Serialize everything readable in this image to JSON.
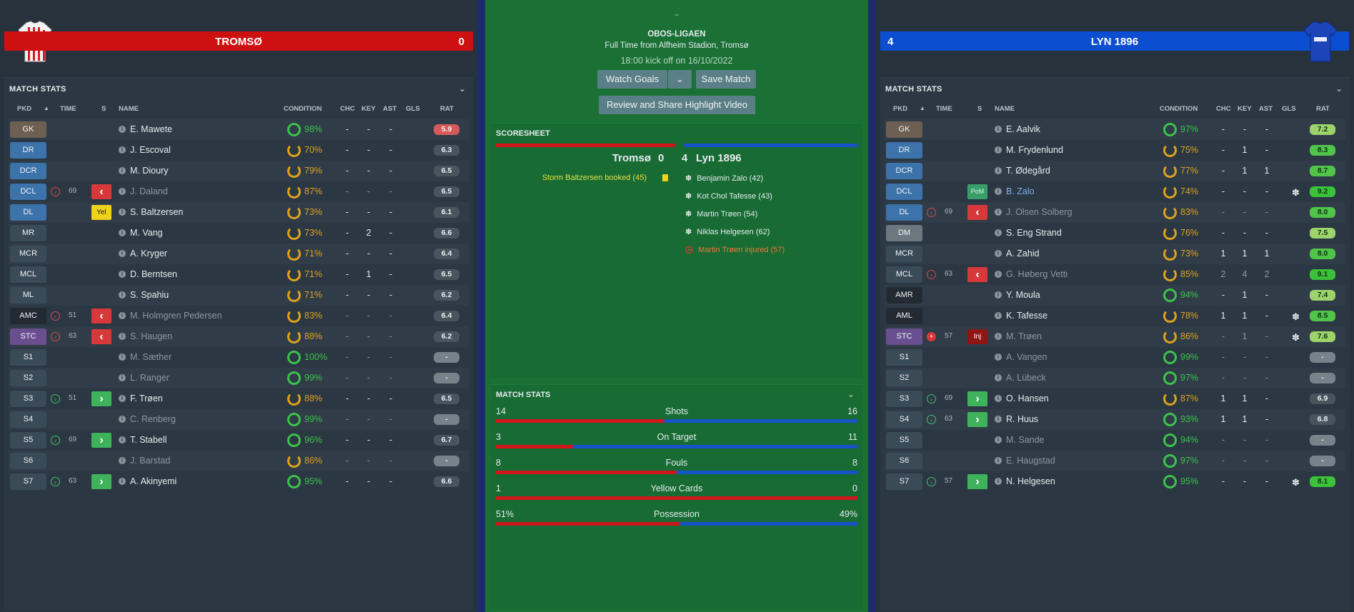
{
  "home": {
    "name": "TROMSØ",
    "score": "0",
    "color": "#cd1111",
    "panel_title": "MATCH STATS",
    "columns": [
      "PKD",
      "TIME",
      "S",
      "NAME",
      "CONDITION",
      "CHC",
      "KEY",
      "AST",
      "GLS",
      "RAT"
    ],
    "players": [
      {
        "pos": "GK",
        "posColor": "#6d6052",
        "time": "",
        "sub": "",
        "evt": "",
        "name": "E. Mawete",
        "cond": "98%",
        "condColor": "#3cc24a",
        "chc": "-",
        "key": "-",
        "ast": "-",
        "gls": "",
        "rat": "5.9",
        "ratColor": "#d65a5a",
        "dim": false
      },
      {
        "pos": "DR",
        "posColor": "#3d73ab",
        "time": "",
        "sub": "",
        "evt": "",
        "name": "J. Escoval",
        "cond": "70%",
        "condColor": "#e0a21a",
        "chc": "-",
        "key": "-",
        "ast": "-",
        "gls": "",
        "rat": "6.3",
        "ratColor": "#48545e",
        "dim": false
      },
      {
        "pos": "DCR",
        "posColor": "#3d73ab",
        "time": "",
        "sub": "",
        "evt": "",
        "name": "M. Dioury",
        "cond": "79%",
        "condColor": "#e0a21a",
        "chc": "-",
        "key": "-",
        "ast": "-",
        "gls": "",
        "rat": "6.5",
        "ratColor": "#48545e",
        "dim": false
      },
      {
        "pos": "DCL",
        "posColor": "#3d73ab",
        "time": "69",
        "sub": "off",
        "evt": "off",
        "name": "J. Daland",
        "cond": "87%",
        "condColor": "#e0a21a",
        "chc": "-",
        "key": "-",
        "ast": "-",
        "gls": "",
        "rat": "6.5",
        "ratColor": "#48545e",
        "dim": true
      },
      {
        "pos": "DL",
        "posColor": "#3d73ab",
        "time": "",
        "sub": "",
        "evt": "yel",
        "name": "S. Baltzersen",
        "cond": "73%",
        "condColor": "#e0a21a",
        "chc": "-",
        "key": "-",
        "ast": "-",
        "gls": "",
        "rat": "6.1",
        "ratColor": "#48545e",
        "dim": false
      },
      {
        "pos": "MR",
        "posColor": "#3a4a57",
        "time": "",
        "sub": "",
        "evt": "",
        "name": "M. Vang",
        "cond": "73%",
        "condColor": "#e0a21a",
        "chc": "-",
        "key": "2",
        "ast": "-",
        "gls": "",
        "rat": "6.6",
        "ratColor": "#48545e",
        "dim": false
      },
      {
        "pos": "MCR",
        "posColor": "#3a4a57",
        "time": "",
        "sub": "",
        "evt": "",
        "name": "A. Kryger",
        "cond": "71%",
        "condColor": "#e0a21a",
        "chc": "-",
        "key": "-",
        "ast": "-",
        "gls": "",
        "rat": "6.4",
        "ratColor": "#48545e",
        "dim": false
      },
      {
        "pos": "MCL",
        "posColor": "#3a4a57",
        "time": "",
        "sub": "",
        "evt": "",
        "name": "D. Berntsen",
        "cond": "71%",
        "condColor": "#e0a21a",
        "chc": "-",
        "key": "1",
        "ast": "-",
        "gls": "",
        "rat": "6.5",
        "ratColor": "#48545e",
        "dim": false
      },
      {
        "pos": "ML",
        "posColor": "#3a4a57",
        "time": "",
        "sub": "",
        "evt": "",
        "name": "S. Spahiu",
        "cond": "71%",
        "condColor": "#e0a21a",
        "chc": "-",
        "key": "-",
        "ast": "-",
        "gls": "",
        "rat": "6.2",
        "ratColor": "#48545e",
        "dim": false
      },
      {
        "pos": "AMC",
        "posColor": "#222b33",
        "time": "51",
        "sub": "off",
        "evt": "off",
        "name": "M. Holmgren Pedersen",
        "cond": "83%",
        "condColor": "#e0a21a",
        "chc": "-",
        "key": "-",
        "ast": "-",
        "gls": "",
        "rat": "6.4",
        "ratColor": "#48545e",
        "dim": true
      },
      {
        "pos": "STC",
        "posColor": "#6a4f90",
        "time": "63",
        "sub": "off",
        "evt": "off",
        "name": "S. Haugen",
        "cond": "88%",
        "condColor": "#e0a21a",
        "chc": "-",
        "key": "-",
        "ast": "-",
        "gls": "",
        "rat": "6.2",
        "ratColor": "#48545e",
        "dim": true
      },
      {
        "pos": "S1",
        "posColor": "#3a4a57",
        "time": "",
        "sub": "",
        "evt": "",
        "name": "M. Sæther",
        "cond": "100%",
        "condColor": "#3cc24a",
        "chc": "-",
        "key": "-",
        "ast": "-",
        "gls": "",
        "rat": "-",
        "ratColor": "#77828a",
        "dim": true
      },
      {
        "pos": "S2",
        "posColor": "#3a4a57",
        "time": "",
        "sub": "",
        "evt": "",
        "name": "L. Ranger",
        "cond": "99%",
        "condColor": "#3cc24a",
        "chc": "-",
        "key": "-",
        "ast": "-",
        "gls": "",
        "rat": "-",
        "ratColor": "#77828a",
        "dim": true
      },
      {
        "pos": "S3",
        "posColor": "#3a4a57",
        "time": "51",
        "sub": "on",
        "evt": "on",
        "name": "F. Trøen",
        "cond": "88%",
        "condColor": "#e0a21a",
        "chc": "-",
        "key": "-",
        "ast": "-",
        "gls": "",
        "rat": "6.5",
        "ratColor": "#48545e",
        "dim": false
      },
      {
        "pos": "S4",
        "posColor": "#3a4a57",
        "time": "",
        "sub": "",
        "evt": "",
        "name": "C. Renberg",
        "cond": "99%",
        "condColor": "#3cc24a",
        "chc": "-",
        "key": "-",
        "ast": "-",
        "gls": "",
        "rat": "-",
        "ratColor": "#77828a",
        "dim": true
      },
      {
        "pos": "S5",
        "posColor": "#3a4a57",
        "time": "69",
        "sub": "on",
        "evt": "on",
        "name": "T. Stabell",
        "cond": "96%",
        "condColor": "#3cc24a",
        "chc": "-",
        "key": "-",
        "ast": "-",
        "gls": "",
        "rat": "6.7",
        "ratColor": "#48545e",
        "dim": false
      },
      {
        "pos": "S6",
        "posColor": "#3a4a57",
        "time": "",
        "sub": "",
        "evt": "",
        "name": "J. Barstad",
        "cond": "86%",
        "condColor": "#e0a21a",
        "chc": "-",
        "key": "-",
        "ast": "-",
        "gls": "",
        "rat": "-",
        "ratColor": "#77828a",
        "dim": true
      },
      {
        "pos": "S7",
        "posColor": "#3a4a57",
        "time": "63",
        "sub": "on",
        "evt": "on",
        "name": "A. Akinyemi",
        "cond": "95%",
        "condColor": "#3cc24a",
        "chc": "-",
        "key": "-",
        "ast": "-",
        "gls": "",
        "rat": "6.6",
        "ratColor": "#48545e",
        "dim": false
      }
    ]
  },
  "away": {
    "name": "LYN 1896",
    "score": "4",
    "color": "#0c4ed2",
    "panel_title": "MATCH STATS",
    "columns": [
      "PKD",
      "TIME",
      "S",
      "NAME",
      "CONDITION",
      "CHC",
      "KEY",
      "AST",
      "GLS",
      "RAT"
    ],
    "players": [
      {
        "pos": "GK",
        "posColor": "#6d6052",
        "time": "",
        "sub": "",
        "evt": "",
        "name": "E. Aalvik",
        "cond": "97%",
        "condColor": "#3cc24a",
        "chc": "-",
        "key": "-",
        "ast": "-",
        "gls": "",
        "rat": "7.2",
        "ratColor": "#9cd36a",
        "dim": false
      },
      {
        "pos": "DR",
        "posColor": "#3d73ab",
        "time": "",
        "sub": "",
        "evt": "",
        "name": "M. Frydenlund",
        "cond": "75%",
        "condColor": "#e0a21a",
        "chc": "-",
        "key": "1",
        "ast": "-",
        "gls": "",
        "rat": "8.3",
        "ratColor": "#51c44a",
        "dim": false
      },
      {
        "pos": "DCR",
        "posColor": "#3d73ab",
        "time": "",
        "sub": "",
        "evt": "",
        "name": "T. Ødegård",
        "cond": "77%",
        "condColor": "#e0a21a",
        "chc": "-",
        "key": "1",
        "ast": "1",
        "gls": "",
        "rat": "8.7",
        "ratColor": "#51c44a",
        "dim": false
      },
      {
        "pos": "DCL",
        "posColor": "#3d73ab",
        "time": "",
        "sub": "",
        "evt": "pom",
        "name": "B. Zalo",
        "cond": "74%",
        "condColor": "#e0a21a",
        "chc": "-",
        "key": "-",
        "ast": "-",
        "gls": "ball",
        "rat": "9.2",
        "ratColor": "#3bc23a",
        "dim": false,
        "hl": true
      },
      {
        "pos": "DL",
        "posColor": "#3d73ab",
        "time": "69",
        "sub": "off",
        "evt": "off",
        "name": "J. Olsen Solberg",
        "cond": "83%",
        "condColor": "#e0a21a",
        "chc": "-",
        "key": "-",
        "ast": "-",
        "gls": "",
        "rat": "8.0",
        "ratColor": "#51c44a",
        "dim": true
      },
      {
        "pos": "DM",
        "posColor": "#6b7880",
        "time": "",
        "sub": "",
        "evt": "",
        "name": "S. Eng Strand",
        "cond": "76%",
        "condColor": "#e0a21a",
        "chc": "-",
        "key": "-",
        "ast": "-",
        "gls": "",
        "rat": "7.5",
        "ratColor": "#9cd36a",
        "dim": false
      },
      {
        "pos": "MCR",
        "posColor": "#3a4a57",
        "time": "",
        "sub": "",
        "evt": "",
        "name": "A. Zahid",
        "cond": "73%",
        "condColor": "#e0a21a",
        "chc": "1",
        "key": "1",
        "ast": "1",
        "gls": "",
        "rat": "8.0",
        "ratColor": "#51c44a",
        "dim": false
      },
      {
        "pos": "MCL",
        "posColor": "#3a4a57",
        "time": "63",
        "sub": "off",
        "evt": "off",
        "name": "G. Høberg Vetti",
        "cond": "85%",
        "condColor": "#e0a21a",
        "chc": "2",
        "key": "4",
        "ast": "2",
        "gls": "",
        "rat": "9.1",
        "ratColor": "#3bc23a",
        "dim": true
      },
      {
        "pos": "AMR",
        "posColor": "#222b33",
        "time": "",
        "sub": "",
        "evt": "",
        "name": "Y. Moula",
        "cond": "94%",
        "condColor": "#3cc24a",
        "chc": "-",
        "key": "1",
        "ast": "-",
        "gls": "",
        "rat": "7.4",
        "ratColor": "#9cd36a",
        "dim": false
      },
      {
        "pos": "AML",
        "posColor": "#222b33",
        "time": "",
        "sub": "",
        "evt": "",
        "name": "K. Tafesse",
        "cond": "78%",
        "condColor": "#e0a21a",
        "chc": "1",
        "key": "1",
        "ast": "-",
        "gls": "ball",
        "rat": "8.5",
        "ratColor": "#51c44a",
        "dim": false
      },
      {
        "pos": "STC",
        "posColor": "#6a4f90",
        "time": "57",
        "sub": "inj",
        "evt": "inj",
        "name": "M. Trøen",
        "cond": "86%",
        "condColor": "#e0a21a",
        "chc": "-",
        "key": "1",
        "ast": "-",
        "gls": "ball",
        "rat": "7.6",
        "ratColor": "#9cd36a",
        "dim": true
      },
      {
        "pos": "S1",
        "posColor": "#3a4a57",
        "time": "",
        "sub": "",
        "evt": "",
        "name": "A. Vangen",
        "cond": "99%",
        "condColor": "#3cc24a",
        "chc": "-",
        "key": "-",
        "ast": "-",
        "gls": "",
        "rat": "-",
        "ratColor": "#77828a",
        "dim": true
      },
      {
        "pos": "S2",
        "posColor": "#3a4a57",
        "time": "",
        "sub": "",
        "evt": "",
        "name": "A. Lübeck",
        "cond": "97%",
        "condColor": "#3cc24a",
        "chc": "-",
        "key": "-",
        "ast": "-",
        "gls": "",
        "rat": "-",
        "ratColor": "#77828a",
        "dim": true
      },
      {
        "pos": "S3",
        "posColor": "#3a4a57",
        "time": "69",
        "sub": "on",
        "evt": "on",
        "name": "O. Hansen",
        "cond": "87%",
        "condColor": "#e0a21a",
        "chc": "1",
        "key": "1",
        "ast": "-",
        "gls": "",
        "rat": "6.9",
        "ratColor": "#48545e",
        "dim": false
      },
      {
        "pos": "S4",
        "posColor": "#3a4a57",
        "time": "63",
        "sub": "on",
        "evt": "on",
        "name": "R. Huus",
        "cond": "93%",
        "condColor": "#3cc24a",
        "chc": "1",
        "key": "1",
        "ast": "-",
        "gls": "",
        "rat": "6.8",
        "ratColor": "#48545e",
        "dim": false
      },
      {
        "pos": "S5",
        "posColor": "#3a4a57",
        "time": "",
        "sub": "",
        "evt": "",
        "name": "M. Sande",
        "cond": "94%",
        "condColor": "#3cc24a",
        "chc": "-",
        "key": "-",
        "ast": "-",
        "gls": "",
        "rat": "-",
        "ratColor": "#77828a",
        "dim": true
      },
      {
        "pos": "S6",
        "posColor": "#3a4a57",
        "time": "",
        "sub": "",
        "evt": "",
        "name": "E. Haugstad",
        "cond": "97%",
        "condColor": "#3cc24a",
        "chc": "-",
        "key": "-",
        "ast": "-",
        "gls": "",
        "rat": "-",
        "ratColor": "#77828a",
        "dim": true
      },
      {
        "pos": "S7",
        "posColor": "#3a4a57",
        "time": "57",
        "sub": "on",
        "evt": "on",
        "name": "N. Helgesen",
        "cond": "95%",
        "condColor": "#3cc24a",
        "chc": "-",
        "key": "-",
        "ast": "-",
        "gls": "ball",
        "rat": "8.1",
        "ratColor": "#3bc23a",
        "dim": false
      }
    ]
  },
  "match": {
    "competition": "OBOS-LIGAEN",
    "full_time": "Full Time from Alfheim Stadion, Tromsø",
    "kickoff": "18:00 kick off on 16/10/2022",
    "watch_goals": "Watch Goals",
    "save_match": "Save Match",
    "review_share": "Review and Share Highlight Video"
  },
  "scoresheet": {
    "title": "SCORESHEET",
    "home_name": "Tromsø",
    "home_score": "0",
    "away_score": "4",
    "away_name": "Lyn 1896",
    "home_events": [
      "Storm Baltzersen booked (45)"
    ],
    "away_events": [
      "Benjamin Zalo (42)",
      "Kot Chol Tafesse (43)",
      "Martin Trøen (54)",
      "Niklas Helgesen (62)",
      "Martin Trøen injured (57)"
    ]
  },
  "match_stats": {
    "title": "MATCH STATS",
    "rows": [
      {
        "label": "Shots",
        "home": "14",
        "away": "16",
        "home_share": 0.467
      },
      {
        "label": "On Target",
        "home": "3",
        "away": "11",
        "home_share": 0.214
      },
      {
        "label": "Fouls",
        "home": "8",
        "away": "8",
        "home_share": 0.5
      },
      {
        "label": "Yellow Cards",
        "home": "1",
        "away": "0",
        "home_share": 1.0
      },
      {
        "label": "Possession",
        "home": "51%",
        "away": "49%",
        "home_share": 0.51
      }
    ]
  }
}
